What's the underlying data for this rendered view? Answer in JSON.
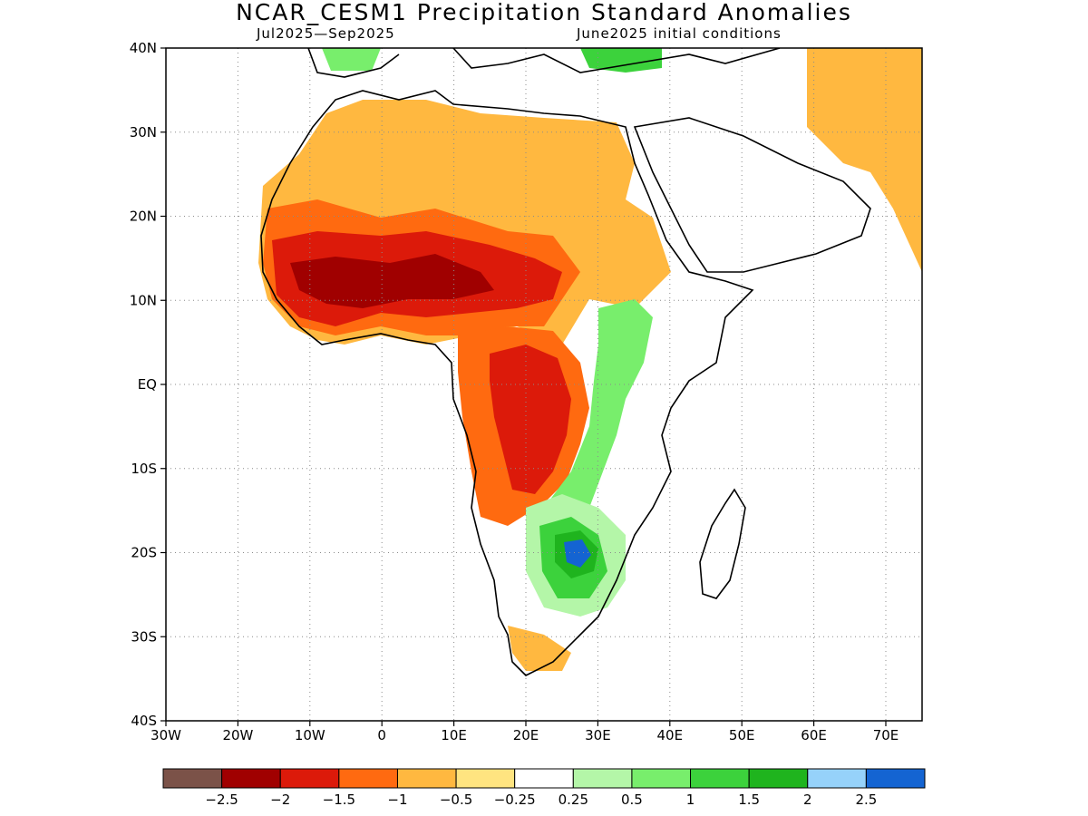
{
  "title": "NCAR_CESM1 Precipitation Standard Anomalies",
  "subtitle_left": "Jul2025—Sep2025",
  "subtitle_right": "June2025 initial conditions",
  "lat_ticks": [
    "40N",
    "30N",
    "20N",
    "10N",
    "EQ",
    "10S",
    "20S",
    "30S",
    "40S"
  ],
  "lon_ticks": [
    "30W",
    "20W",
    "10W",
    "0",
    "10E",
    "20E",
    "30E",
    "40E",
    "50E",
    "60E",
    "70E"
  ],
  "colorbar": {
    "colors": [
      "#7b5248",
      "#a00000",
      "#dc1a0a",
      "#ff6a10",
      "#ffb840",
      "#ffe480",
      "#ffffff",
      "#b4f6a8",
      "#78ee6c",
      "#3cd23c",
      "#1fb41e",
      "#96d2fa",
      "#1464d2"
    ],
    "labels": [
      "−2.5",
      "−2",
      "−1.5",
      "−1",
      "−0.5",
      "−0.25",
      "0.25",
      "0.5",
      "1",
      "1.5",
      "2",
      "2.5"
    ]
  },
  "colors": {
    "land_outline": "#000000",
    "grid": "#8c8c8c"
  }
}
